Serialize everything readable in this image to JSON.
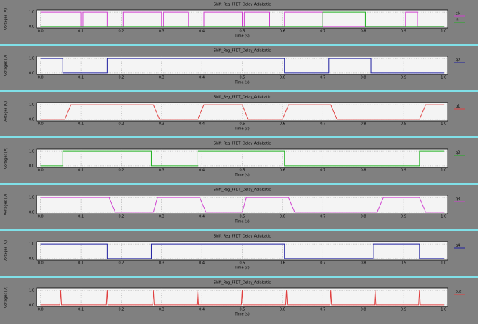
{
  "chart_data": [
    {
      "type": "line",
      "title": "Shift_Reg_FFDT_Delay_Adiabatic",
      "x_label": "Time (s)",
      "y_label": "Voltages (V)",
      "xlim": [
        -0.01,
        1.01
      ],
      "ylim": [
        -0.1,
        1.15
      ],
      "xticks": [
        {
          "value": 0,
          "label": "0.0"
        },
        {
          "value": 0.1,
          "label": "0.1"
        },
        {
          "value": 0.2,
          "label": "0.2"
        },
        {
          "value": 0.3,
          "label": "0.3"
        },
        {
          "value": 0.4,
          "label": "0.4"
        },
        {
          "value": 0.5,
          "label": "0.5"
        },
        {
          "value": 0.6,
          "label": "0.6"
        },
        {
          "value": 0.7,
          "label": "0.7"
        },
        {
          "value": 0.8,
          "label": "0.8"
        },
        {
          "value": 0.9,
          "label": "0.9"
        },
        {
          "value": 1,
          "label": "1.0"
        }
      ],
      "yticks": [
        {
          "value": 0,
          "label": "0.0"
        },
        {
          "value": 1,
          "label": "1.0"
        }
      ],
      "grid": true,
      "legend": "right",
      "series": [
        {
          "name": "clk",
          "color": "#d040d0",
          "x": [
            0,
            0.1,
            0.1,
            0.105,
            0.105,
            0.165,
            0.165,
            0.205,
            0.205,
            0.3,
            0.3,
            0.305,
            0.305,
            0.367,
            0.367,
            0.405,
            0.405,
            0.5,
            0.5,
            0.505,
            0.505,
            0.568,
            0.568,
            0.605,
            0.605,
            0.7,
            0.7,
            0.905,
            0.905,
            0.935,
            0.935,
            1.0
          ],
          "values": [
            1,
            1,
            0,
            0,
            1,
            1,
            0,
            0,
            1,
            1,
            0,
            0,
            1,
            1,
            0,
            0,
            1,
            1,
            0,
            0,
            1,
            1,
            0,
            0,
            1,
            1,
            0,
            0,
            1,
            1,
            0,
            0
          ]
        },
        {
          "name": "in",
          "color": "#20b020",
          "x": [
            0,
            0.7,
            0.7,
            0.805,
            0.805,
            1.0
          ],
          "values": [
            0,
            0,
            1,
            1,
            0,
            0
          ]
        }
      ]
    },
    {
      "type": "line",
      "title": "Shift_Reg_FFDT_Delay_Adiabatic",
      "x_label": "Time (s)",
      "y_label": "Voltages (V)",
      "xlim": [
        -0.01,
        1.01
      ],
      "ylim": [
        -0.1,
        1.15
      ],
      "xticks": [
        {
          "value": 0,
          "label": "0.0"
        },
        {
          "value": 0.1,
          "label": "0.1"
        },
        {
          "value": 0.2,
          "label": "0.2"
        },
        {
          "value": 0.3,
          "label": "0.3"
        },
        {
          "value": 0.4,
          "label": "0.4"
        },
        {
          "value": 0.5,
          "label": "0.5"
        },
        {
          "value": 0.6,
          "label": "0.6"
        },
        {
          "value": 0.7,
          "label": "0.7"
        },
        {
          "value": 0.8,
          "label": "0.8"
        },
        {
          "value": 0.9,
          "label": "0.9"
        },
        {
          "value": 1,
          "label": "1.0"
        }
      ],
      "yticks": [
        {
          "value": 0,
          "label": "0.0"
        },
        {
          "value": 1,
          "label": "1.0"
        }
      ],
      "grid": true,
      "legend": "right",
      "series": [
        {
          "name": "q0",
          "color": "#2020a0",
          "x": [
            0,
            0.055,
            0.055,
            0.165,
            0.165,
            0.605,
            0.605,
            0.715,
            0.715,
            0.82,
            0.82,
            1.0
          ],
          "values": [
            1,
            1,
            0,
            0,
            1,
            1,
            0,
            0,
            1,
            1,
            0,
            0
          ]
        }
      ]
    },
    {
      "type": "line",
      "title": "Shift_Reg_FFDT_Delay_Adiabatic",
      "x_label": "Time (s)",
      "y_label": "Voltages (V)",
      "xlim": [
        -0.01,
        1.01
      ],
      "ylim": [
        -0.1,
        1.15
      ],
      "xticks": [
        {
          "value": 0,
          "label": "0.0"
        },
        {
          "value": 0.1,
          "label": "0.1"
        },
        {
          "value": 0.2,
          "label": "0.2"
        },
        {
          "value": 0.3,
          "label": "0.3"
        },
        {
          "value": 0.4,
          "label": "0.4"
        },
        {
          "value": 0.5,
          "label": "0.5"
        },
        {
          "value": 0.6,
          "label": "0.6"
        },
        {
          "value": 0.7,
          "label": "0.7"
        },
        {
          "value": 0.8,
          "label": "0.8"
        },
        {
          "value": 0.9,
          "label": "0.9"
        },
        {
          "value": 1,
          "label": "1.0"
        }
      ],
      "yticks": [
        {
          "value": 0,
          "label": "0.0"
        },
        {
          "value": 1,
          "label": "1.0"
        }
      ],
      "grid": true,
      "legend": "right",
      "series": [
        {
          "name": "q1",
          "color": "#e04040",
          "x": [
            0,
            0.06,
            0.075,
            0.28,
            0.295,
            0.39,
            0.405,
            0.5,
            0.515,
            0.6,
            0.615,
            0.72,
            0.735,
            0.94,
            0.955,
            1.0
          ],
          "values": [
            0,
            0,
            1,
            1,
            0,
            0,
            1,
            1,
            0,
            0,
            1,
            1,
            0,
            0,
            1,
            1
          ]
        }
      ]
    },
    {
      "type": "line",
      "title": "Shift_Reg_FFDT_Delay_Adiabatic",
      "x_label": "Time (s)",
      "y_label": "Voltages (V)",
      "xlim": [
        -0.01,
        1.01
      ],
      "ylim": [
        -0.1,
        1.15
      ],
      "xticks": [
        {
          "value": 0,
          "label": "0.0"
        },
        {
          "value": 0.1,
          "label": "0.1"
        },
        {
          "value": 0.2,
          "label": "0.2"
        },
        {
          "value": 0.3,
          "label": "0.3"
        },
        {
          "value": 0.4,
          "label": "0.4"
        },
        {
          "value": 0.5,
          "label": "0.5"
        },
        {
          "value": 0.6,
          "label": "0.6"
        },
        {
          "value": 0.7,
          "label": "0.7"
        },
        {
          "value": 0.8,
          "label": "0.8"
        },
        {
          "value": 0.9,
          "label": "0.9"
        },
        {
          "value": 1,
          "label": "1.0"
        }
      ],
      "yticks": [
        {
          "value": 0,
          "label": "0.0"
        },
        {
          "value": 1,
          "label": "1.0"
        }
      ],
      "grid": true,
      "legend": "right",
      "series": [
        {
          "name": "q2",
          "color": "#20b020",
          "x": [
            0,
            0.055,
            0.055,
            0.275,
            0.275,
            0.39,
            0.39,
            0.605,
            0.605,
            0.94,
            0.94,
            1.0
          ],
          "values": [
            0,
            0,
            1,
            1,
            0,
            0,
            1,
            1,
            0,
            0,
            1,
            1
          ]
        }
      ]
    },
    {
      "type": "line",
      "title": "Shift_Reg_FFDT_Delay_Adiabatic",
      "x_label": "Time (s)",
      "y_label": "Voltages (V)",
      "xlim": [
        -0.01,
        1.01
      ],
      "ylim": [
        -0.1,
        1.15
      ],
      "xticks": [
        {
          "value": 0,
          "label": "0.0"
        },
        {
          "value": 0.1,
          "label": "0.1"
        },
        {
          "value": 0.2,
          "label": "0.2"
        },
        {
          "value": 0.3,
          "label": "0.3"
        },
        {
          "value": 0.4,
          "label": "0.4"
        },
        {
          "value": 0.5,
          "label": "0.5"
        },
        {
          "value": 0.6,
          "label": "0.6"
        },
        {
          "value": 0.7,
          "label": "0.7"
        },
        {
          "value": 0.8,
          "label": "0.8"
        },
        {
          "value": 0.9,
          "label": "0.9"
        },
        {
          "value": 1,
          "label": "1.0"
        }
      ],
      "yticks": [
        {
          "value": 0,
          "label": "0.0"
        },
        {
          "value": 1,
          "label": "1.0"
        }
      ],
      "grid": true,
      "legend": "right",
      "series": [
        {
          "name": "q3",
          "color": "#d040d0",
          "x": [
            0,
            0.17,
            0.185,
            0.28,
            0.29,
            0.395,
            0.41,
            0.5,
            0.51,
            0.615,
            0.63,
            0.835,
            0.85,
            0.94,
            0.955,
            1.0
          ],
          "values": [
            1,
            1,
            0,
            0,
            1,
            1,
            0,
            0,
            1,
            1,
            0,
            0,
            1,
            1,
            0,
            0
          ]
        }
      ]
    },
    {
      "type": "line",
      "title": "Shift_Reg_FFDT_Delay_Adiabatic",
      "x_label": "Time (s)",
      "y_label": "Voltages (V)",
      "xlim": [
        -0.01,
        1.01
      ],
      "ylim": [
        -0.1,
        1.15
      ],
      "xticks": [
        {
          "value": 0,
          "label": "0.0"
        },
        {
          "value": 0.1,
          "label": "0.1"
        },
        {
          "value": 0.2,
          "label": "0.2"
        },
        {
          "value": 0.3,
          "label": "0.3"
        },
        {
          "value": 0.4,
          "label": "0.4"
        },
        {
          "value": 0.5,
          "label": "0.5"
        },
        {
          "value": 0.6,
          "label": "0.6"
        },
        {
          "value": 0.7,
          "label": "0.7"
        },
        {
          "value": 0.8,
          "label": "0.8"
        },
        {
          "value": 0.9,
          "label": "0.9"
        },
        {
          "value": 1,
          "label": "1.0"
        }
      ],
      "yticks": [
        {
          "value": 0,
          "label": "0.0"
        },
        {
          "value": 1,
          "label": "1.0"
        }
      ],
      "grid": true,
      "legend": "right",
      "series": [
        {
          "name": "q4",
          "color": "#2020a0",
          "x": [
            0,
            0.165,
            0.165,
            0.275,
            0.275,
            0.605,
            0.605,
            0.825,
            0.825,
            0.94,
            0.94,
            1.0
          ],
          "values": [
            1,
            1,
            0,
            0,
            1,
            1,
            0,
            0,
            1,
            1,
            0,
            0
          ]
        }
      ]
    },
    {
      "type": "line",
      "title": "Shift_Reg_FFDT_Delay_Adiabatic",
      "x_label": "Time (s)",
      "y_label": "Voltages (V)",
      "xlim": [
        -0.01,
        1.01
      ],
      "ylim": [
        -0.1,
        1.15
      ],
      "xticks": [
        {
          "value": 0,
          "label": "0.0"
        },
        {
          "value": 0.1,
          "label": "0.1"
        },
        {
          "value": 0.2,
          "label": "0.2"
        },
        {
          "value": 0.3,
          "label": "0.3"
        },
        {
          "value": 0.4,
          "label": "0.4"
        },
        {
          "value": 0.5,
          "label": "0.5"
        },
        {
          "value": 0.6,
          "label": "0.6"
        },
        {
          "value": 0.7,
          "label": "0.7"
        },
        {
          "value": 0.8,
          "label": "0.8"
        },
        {
          "value": 0.9,
          "label": "0.9"
        },
        {
          "value": 1,
          "label": "1.0"
        }
      ],
      "yticks": [
        {
          "value": 0,
          "label": "0.0"
        },
        {
          "value": 1,
          "label": "1.0"
        }
      ],
      "grid": true,
      "legend": "right",
      "series": [
        {
          "name": "out",
          "color": "#e04040",
          "x": [
            0,
            0.048,
            0.05,
            0.052,
            0.163,
            0.165,
            0.167,
            0.278,
            0.28,
            0.282,
            0.388,
            0.39,
            0.392,
            0.498,
            0.5,
            0.502,
            0.608,
            0.61,
            0.612,
            0.718,
            0.72,
            0.722,
            0.828,
            0.83,
            0.832,
            0.938,
            0.94,
            0.942,
            1.0
          ],
          "values": [
            0,
            0,
            1,
            0,
            0,
            1,
            0,
            0,
            1,
            0,
            0,
            1,
            0,
            0,
            1,
            0,
            0,
            1,
            0,
            0,
            1,
            0,
            0,
            1,
            0,
            0,
            1,
            0,
            0
          ]
        }
      ]
    }
  ]
}
